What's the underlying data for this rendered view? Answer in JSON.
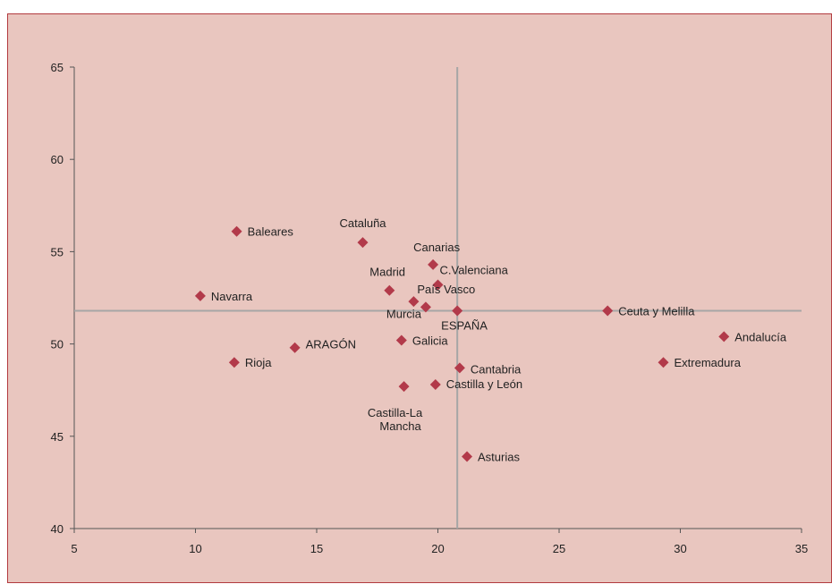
{
  "chart_data": {
    "type": "scatter",
    "title": "",
    "xlabel": "",
    "ylabel": "",
    "xlim": [
      5,
      35
    ],
    "ylim": [
      40,
      65
    ],
    "x_ticks": [
      "5",
      "10",
      "15",
      "20",
      "25",
      "30",
      "35"
    ],
    "y_ticks": [
      "40",
      "45",
      "50",
      "55",
      "60",
      "65"
    ],
    "grid": false,
    "reference_lines": {
      "x": 20.8,
      "y": 51.8
    },
    "colors": {
      "marker": "#b23a4a",
      "reference": "#a6a6a6",
      "axis": "#555555",
      "background": "#e9c6bf",
      "border": "#b23a3e"
    },
    "points": [
      {
        "label": "Baleares",
        "x": 11.7,
        "y": 56.1
      },
      {
        "label": "Cataluña",
        "x": 16.9,
        "y": 55.5
      },
      {
        "label": "Canarias",
        "x": 19.8,
        "y": 54.3
      },
      {
        "label": "C.Valenciana",
        "x": 20.0,
        "y": 53.2
      },
      {
        "label": "Madrid",
        "x": 18.0,
        "y": 52.9
      },
      {
        "label": "Navarra",
        "x": 10.2,
        "y": 52.6
      },
      {
        "label": "Murcia",
        "x": 19.5,
        "y": 52.0
      },
      {
        "label": "País Vasco",
        "x": 19.0,
        "y": 52.3
      },
      {
        "label": "ESPAÑA",
        "x": 20.8,
        "y": 51.8
      },
      {
        "label": "Ceuta y Melilla",
        "x": 27.0,
        "y": 51.8
      },
      {
        "label": "Andalucía",
        "x": 31.8,
        "y": 50.4
      },
      {
        "label": "Galicia",
        "x": 18.5,
        "y": 50.2
      },
      {
        "label": "ARAGÓN",
        "x": 14.1,
        "y": 49.8
      },
      {
        "label": "Rioja",
        "x": 11.6,
        "y": 49.0
      },
      {
        "label": "Extremadura",
        "x": 29.3,
        "y": 49.0
      },
      {
        "label": "Cantabria",
        "x": 20.9,
        "y": 48.7
      },
      {
        "label": "Castilla y León",
        "x": 19.9,
        "y": 47.8
      },
      {
        "label": "Castilla-La Mancha",
        "x": 18.6,
        "y": 47.7
      },
      {
        "label": "Asturias",
        "x": 21.2,
        "y": 43.9
      }
    ]
  }
}
